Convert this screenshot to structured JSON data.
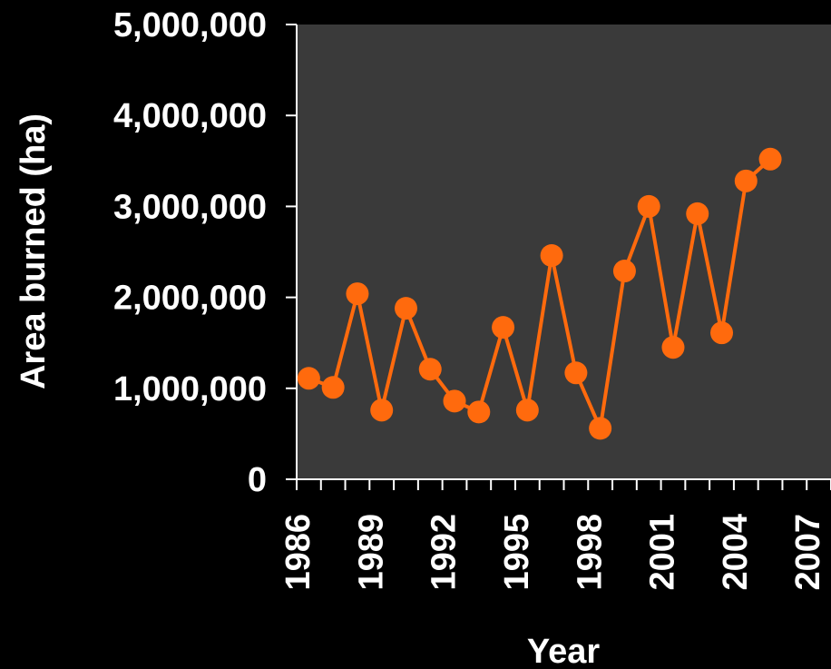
{
  "chart_data": {
    "type": "line",
    "title": "",
    "xlabel": "Year",
    "ylabel": "Area burned (ha)",
    "xlim": [
      1986,
      2008
    ],
    "ylim": [
      0,
      5000000
    ],
    "x_ticks": [
      1986,
      1987,
      1988,
      1989,
      1990,
      1991,
      1992,
      1993,
      1994,
      1995,
      1996,
      1997,
      1998,
      1999,
      2000,
      2001,
      2002,
      2003,
      2004,
      2005,
      2006,
      2007,
      2008
    ],
    "x_tick_labels": [
      "1986",
      "1989",
      "1992",
      "1995",
      "1998",
      "2001",
      "2004",
      "2007"
    ],
    "x_tick_label_values": [
      1986,
      1989,
      1992,
      1995,
      1998,
      2001,
      2004,
      2007
    ],
    "y_ticks": [
      0,
      1000000,
      2000000,
      3000000,
      4000000,
      5000000
    ],
    "y_tick_labels": [
      "0",
      "1,000,000",
      "2,000,000",
      "3,000,000",
      "4,000,000",
      "5,000,000"
    ],
    "grid": false,
    "colors": {
      "background": "#000000",
      "plot_background": "#3a3a3a",
      "axis": "#ffffff",
      "series": "#ff6a0d"
    },
    "series": [
      {
        "x": [
          1986.5,
          1987.5,
          1988.5,
          1989.5,
          1990.5,
          1991.5,
          1992.5,
          1993.5,
          1994.5,
          1995.5,
          1996.5,
          1997.5,
          1998.5,
          1999.5,
          2000.5,
          2001.5,
          2002.5,
          2003.5,
          2004.5,
          2005.5
        ],
        "values": [
          1110000,
          1010000,
          2040000,
          760000,
          1880000,
          1210000,
          860000,
          740000,
          1670000,
          760000,
          2460000,
          1170000,
          560000,
          2290000,
          3000000,
          1450000,
          2920000,
          1610000,
          3280000,
          3520000
        ]
      }
    ]
  }
}
